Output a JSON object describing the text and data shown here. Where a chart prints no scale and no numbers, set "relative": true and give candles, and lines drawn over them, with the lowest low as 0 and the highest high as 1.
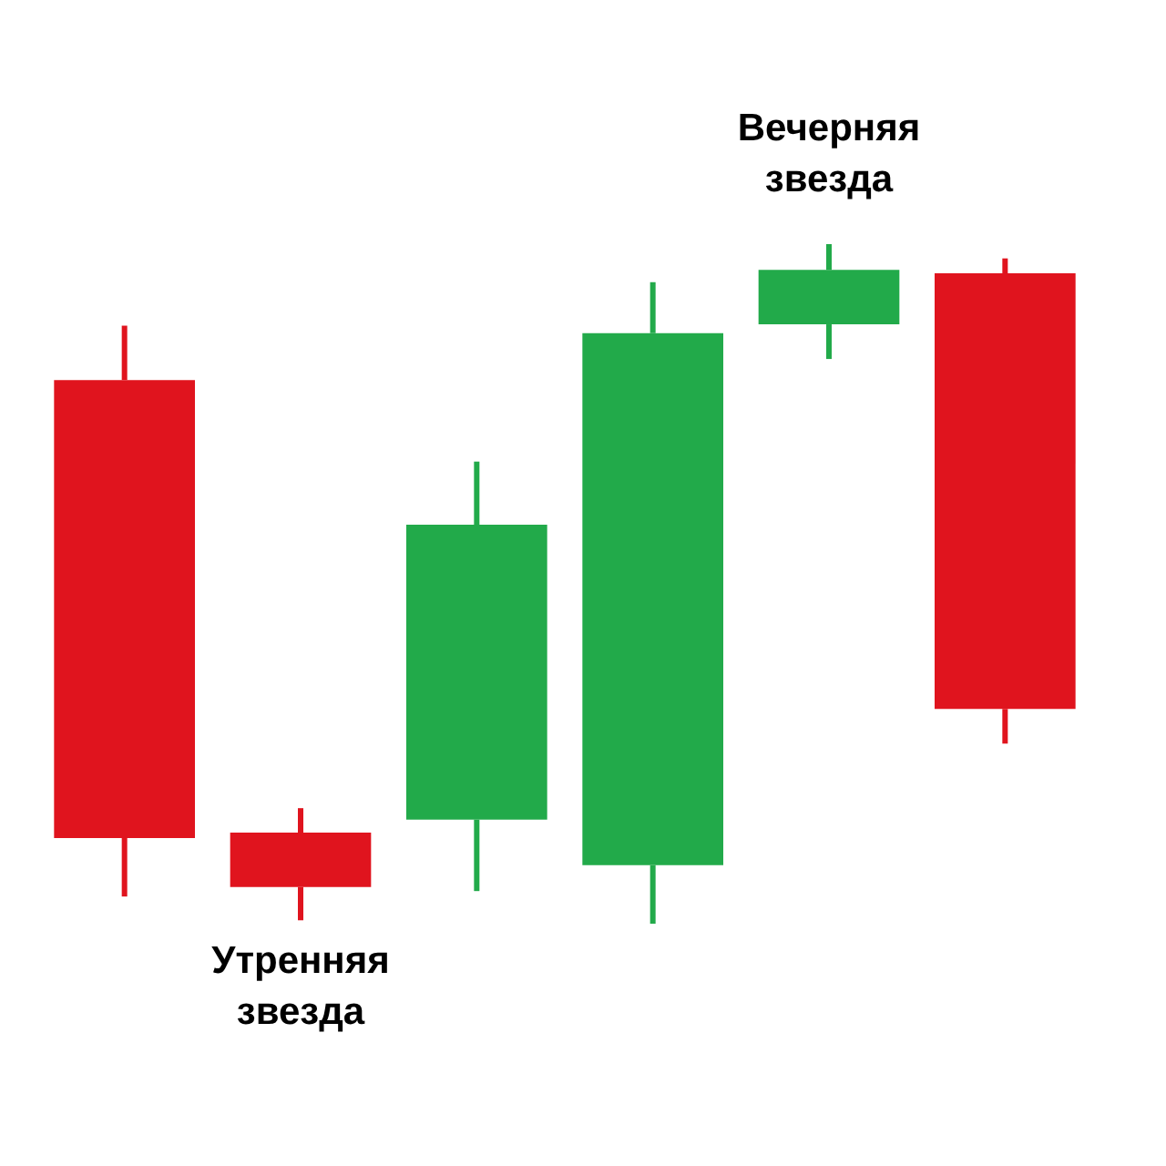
{
  "chart_data": {
    "type": "candlestick",
    "relative": true,
    "categories": [
      null,
      null,
      null,
      null,
      null,
      null
    ],
    "ohlc": [
      [
        0.8,
        0.88,
        0.04,
        0.126
      ],
      [
        0.134,
        0.17,
        0.005,
        0.054
      ],
      [
        0.153,
        0.68,
        0.048,
        0.587
      ],
      [
        0.086,
        0.944,
        0,
        0.869
      ],
      [
        0.882,
        1,
        0.831,
        0.962
      ],
      [
        0.957,
        0.979,
        0.265,
        0.316
      ]
    ],
    "colors": [
      "#e0141e",
      "#e0141e",
      "#22aa4a",
      "#22aa4a",
      "#22aa4a",
      "#e0141e"
    ],
    "annotations": [
      "Утренняя звезда",
      "Вечерняя звезда"
    ]
  }
}
